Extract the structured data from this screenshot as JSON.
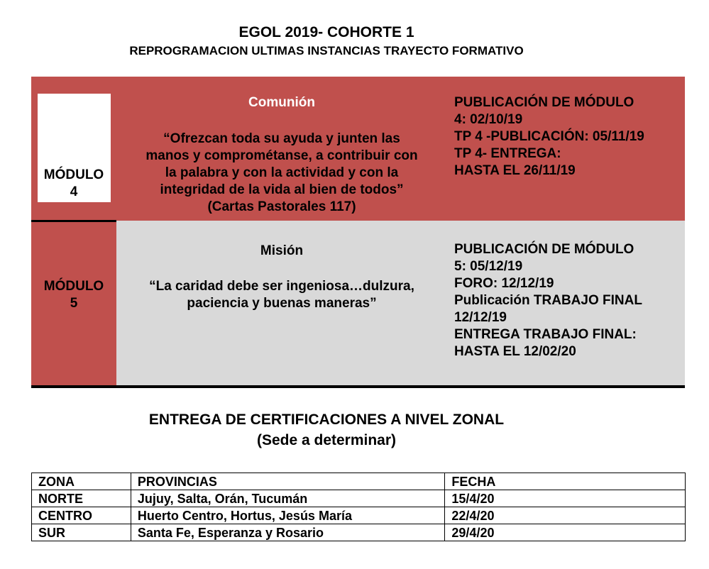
{
  "header": {
    "title": "EGOL 2019- COHORTE 1",
    "subtitle": "REPROGRAMACION ULTIMAS INSTANCIAS TRAYECTO FORMATIVO"
  },
  "colors": {
    "red": "#c0504d",
    "grey": "#d9d9d9"
  },
  "modules": [
    {
      "label_line1": "MÓDULO",
      "label_line2": "4",
      "theme": "Comunión",
      "quote": [
        "“Ofrezcan toda su ayuda y junten las",
        "manos y comprométanse, a contribuir con",
        "la palabra y con la actividad y con la",
        "integridad de la vida al bien de todos”",
        "(Cartas Pastorales 117)"
      ],
      "schedule": [
        "PUBLICACIÓN DE MÓDULO",
        "4: 02/10/19",
        "TP 4 -PUBLICACIÓN: 05/11/19",
        "TP 4- ENTREGA:",
        "HASTA EL 26/11/19"
      ]
    },
    {
      "label_line1": "MÓDULO",
      "label_line2": "5",
      "theme": "Misión",
      "quote": [
        "“La caridad debe ser ingeniosa…dulzura,",
        "paciencia y buenas maneras”"
      ],
      "schedule": [
        "PUBLICACIÓN DE MÓDULO",
        "5: 05/12/19",
        "FORO: 12/12/19",
        "Publicación TRABAJO FINAL",
        "12/12/19",
        "ENTREGA TRABAJO FINAL:",
        "HASTA EL 12/02/20"
      ]
    }
  ],
  "certifications": {
    "title": "ENTREGA DE CERTIFICACIONES A NIVEL ZONAL",
    "subtitle": "(Sede a determinar)",
    "columns": [
      "ZONA",
      "PROVINCIAS",
      "FECHA"
    ],
    "rows": [
      [
        "NORTE",
        "Jujuy, Salta, Orán, Tucumán",
        "15/4/20"
      ],
      [
        "CENTRO",
        "Huerto Centro, Hortus, Jesús María",
        "22/4/20"
      ],
      [
        "SUR",
        "Santa Fe, Esperanza y Rosario",
        "29/4/20"
      ]
    ]
  }
}
